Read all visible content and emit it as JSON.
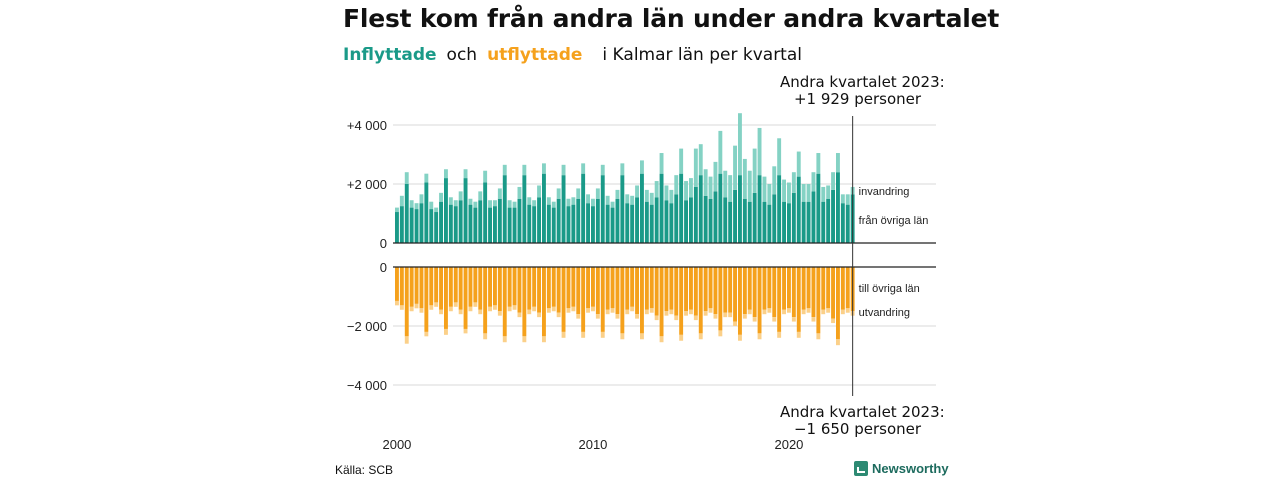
{
  "title": "Flest kom från andra län under andra kvartalet",
  "subtitle": {
    "part1": "Inflyttade",
    "part2": "och",
    "part3": "utflyttade",
    "part4": "i Kalmar län per kvartal"
  },
  "annotations": {
    "top_line1": "Andra kvartalet 2023:",
    "top_line2": "+1 929 personer",
    "bottom_line1": "Andra kvartalet 2023:",
    "bottom_line2": "−1 650 personer"
  },
  "source": "Källa: SCB",
  "brand": "Newsworthy",
  "colors": {
    "in_lan": "#1a9a88",
    "in_invandring": "#84d2c4",
    "out_lan": "#f5a11c",
    "out_utvandring": "#fbd089",
    "grid": "#d9d9d9",
    "axis": "#222222"
  },
  "chart_data": {
    "type": "bar",
    "stacked": true,
    "x_start": "2000 Q1",
    "x_end": "2023 Q2",
    "x_tick_labels": [
      "2000",
      "2010",
      "2020"
    ],
    "y_tick_labels_top": [
      "+4 000",
      "+2 000",
      "0"
    ],
    "y_tick_labels_bottom": [
      "0",
      "−2 000",
      "−4 000"
    ],
    "ylim_top": [
      0,
      4000
    ],
    "ylim_bottom": [
      -4000,
      0
    ],
    "legend_labels": {
      "in_lan": "från övriga län",
      "in_invandring": "invandring",
      "out_lan": "till övriga län",
      "out_utvandring": "utvandring"
    },
    "inflyttade_fran_ovriga_lan": [
      1050,
      1250,
      2000,
      1200,
      1150,
      1350,
      2050,
      1150,
      1050,
      1400,
      2200,
      1300,
      1250,
      1450,
      2200,
      1300,
      1200,
      1450,
      2050,
      1200,
      1250,
      1500,
      2300,
      1200,
      1200,
      1500,
      2300,
      1300,
      1250,
      1550,
      2350,
      1300,
      1200,
      1500,
      2300,
      1250,
      1300,
      1500,
      2350,
      1350,
      1250,
      1500,
      2300,
      1300,
      1200,
      1500,
      2300,
      1350,
      1300,
      1550,
      2350,
      1400,
      1300,
      1550,
      2350,
      1450,
      1350,
      1650,
      2350,
      1450,
      1550,
      1900,
      2300,
      1600,
      1500,
      1750,
      2350,
      1550,
      1400,
      1800,
      2300,
      1500,
      1400,
      1700,
      2300,
      1400,
      1300,
      1650,
      2300,
      1400,
      1350,
      1700,
      2250,
      1400,
      1400,
      1750,
      2350,
      1400,
      1500,
      1800,
      2400,
      1350,
      1300,
      1650
    ],
    "inflyttade_invandring": [
      150,
      350,
      400,
      250,
      200,
      300,
      300,
      250,
      150,
      300,
      300,
      250,
      200,
      300,
      300,
      200,
      200,
      300,
      400,
      250,
      200,
      350,
      350,
      250,
      200,
      400,
      350,
      250,
      200,
      400,
      350,
      250,
      200,
      350,
      350,
      250,
      250,
      350,
      350,
      300,
      250,
      350,
      350,
      300,
      200,
      300,
      400,
      300,
      300,
      400,
      450,
      400,
      400,
      550,
      700,
      500,
      450,
      650,
      850,
      650,
      650,
      1300,
      1050,
      900,
      750,
      1000,
      1450,
      900,
      900,
      1500,
      2100,
      1350,
      1050,
      1500,
      1600,
      850,
      700,
      950,
      1250,
      750,
      700,
      700,
      850,
      600,
      600,
      650,
      700,
      500,
      450,
      600,
      650,
      300,
      350,
      250
    ],
    "utflyttade_till_ovriga_lan": [
      -1150,
      -1300,
      -2350,
      -1350,
      -1250,
      -1400,
      -2200,
      -1300,
      -1200,
      -1450,
      -2100,
      -1350,
      -1200,
      -1450,
      -2100,
      -1350,
      -1200,
      -1450,
      -2250,
      -1350,
      -1300,
      -1500,
      -2350,
      -1350,
      -1300,
      -1550,
      -2350,
      -1450,
      -1350,
      -1550,
      -2350,
      -1400,
      -1350,
      -1550,
      -2200,
      -1400,
      -1350,
      -1600,
      -2200,
      -1400,
      -1350,
      -1600,
      -2200,
      -1450,
      -1400,
      -1600,
      -2250,
      -1450,
      -1350,
      -1600,
      -2250,
      -1450,
      -1400,
      -1650,
      -2350,
      -1500,
      -1450,
      -1650,
      -2300,
      -1500,
      -1450,
      -1650,
      -2250,
      -1500,
      -1400,
      -1600,
      -2150,
      -1550,
      -1550,
      -1850,
      -2300,
      -1600,
      -1450,
      -1700,
      -2250,
      -1450,
      -1400,
      -1700,
      -2200,
      -1450,
      -1400,
      -1700,
      -2200,
      -1450,
      -1400,
      -1700,
      -2250,
      -1450,
      -1400,
      -1750,
      -2450,
      -1450,
      -1400,
      -1500
    ],
    "utflyttade_utvandring": [
      -150,
      -150,
      -250,
      -150,
      -150,
      -150,
      -150,
      -150,
      -150,
      -150,
      -200,
      -150,
      -150,
      -150,
      -150,
      -150,
      -150,
      -150,
      -200,
      -150,
      -150,
      -150,
      -200,
      -150,
      -150,
      -150,
      -200,
      -150,
      -150,
      -150,
      -200,
      -150,
      -150,
      -150,
      -200,
      -150,
      -150,
      -150,
      -200,
      -150,
      -150,
      -150,
      -200,
      -150,
      -150,
      -150,
      -200,
      -150,
      -150,
      -150,
      -200,
      -150,
      -150,
      -150,
      -200,
      -150,
      -150,
      -150,
      -200,
      -150,
      -150,
      -150,
      -200,
      -150,
      -150,
      -150,
      -200,
      -150,
      -150,
      -150,
      -200,
      -150,
      -150,
      -150,
      -200,
      -150,
      -150,
      -150,
      -200,
      -150,
      -150,
      -150,
      -200,
      -150,
      -150,
      -150,
      -200,
      -150,
      -150,
      -150,
      -200,
      -150,
      -150,
      -150
    ]
  }
}
